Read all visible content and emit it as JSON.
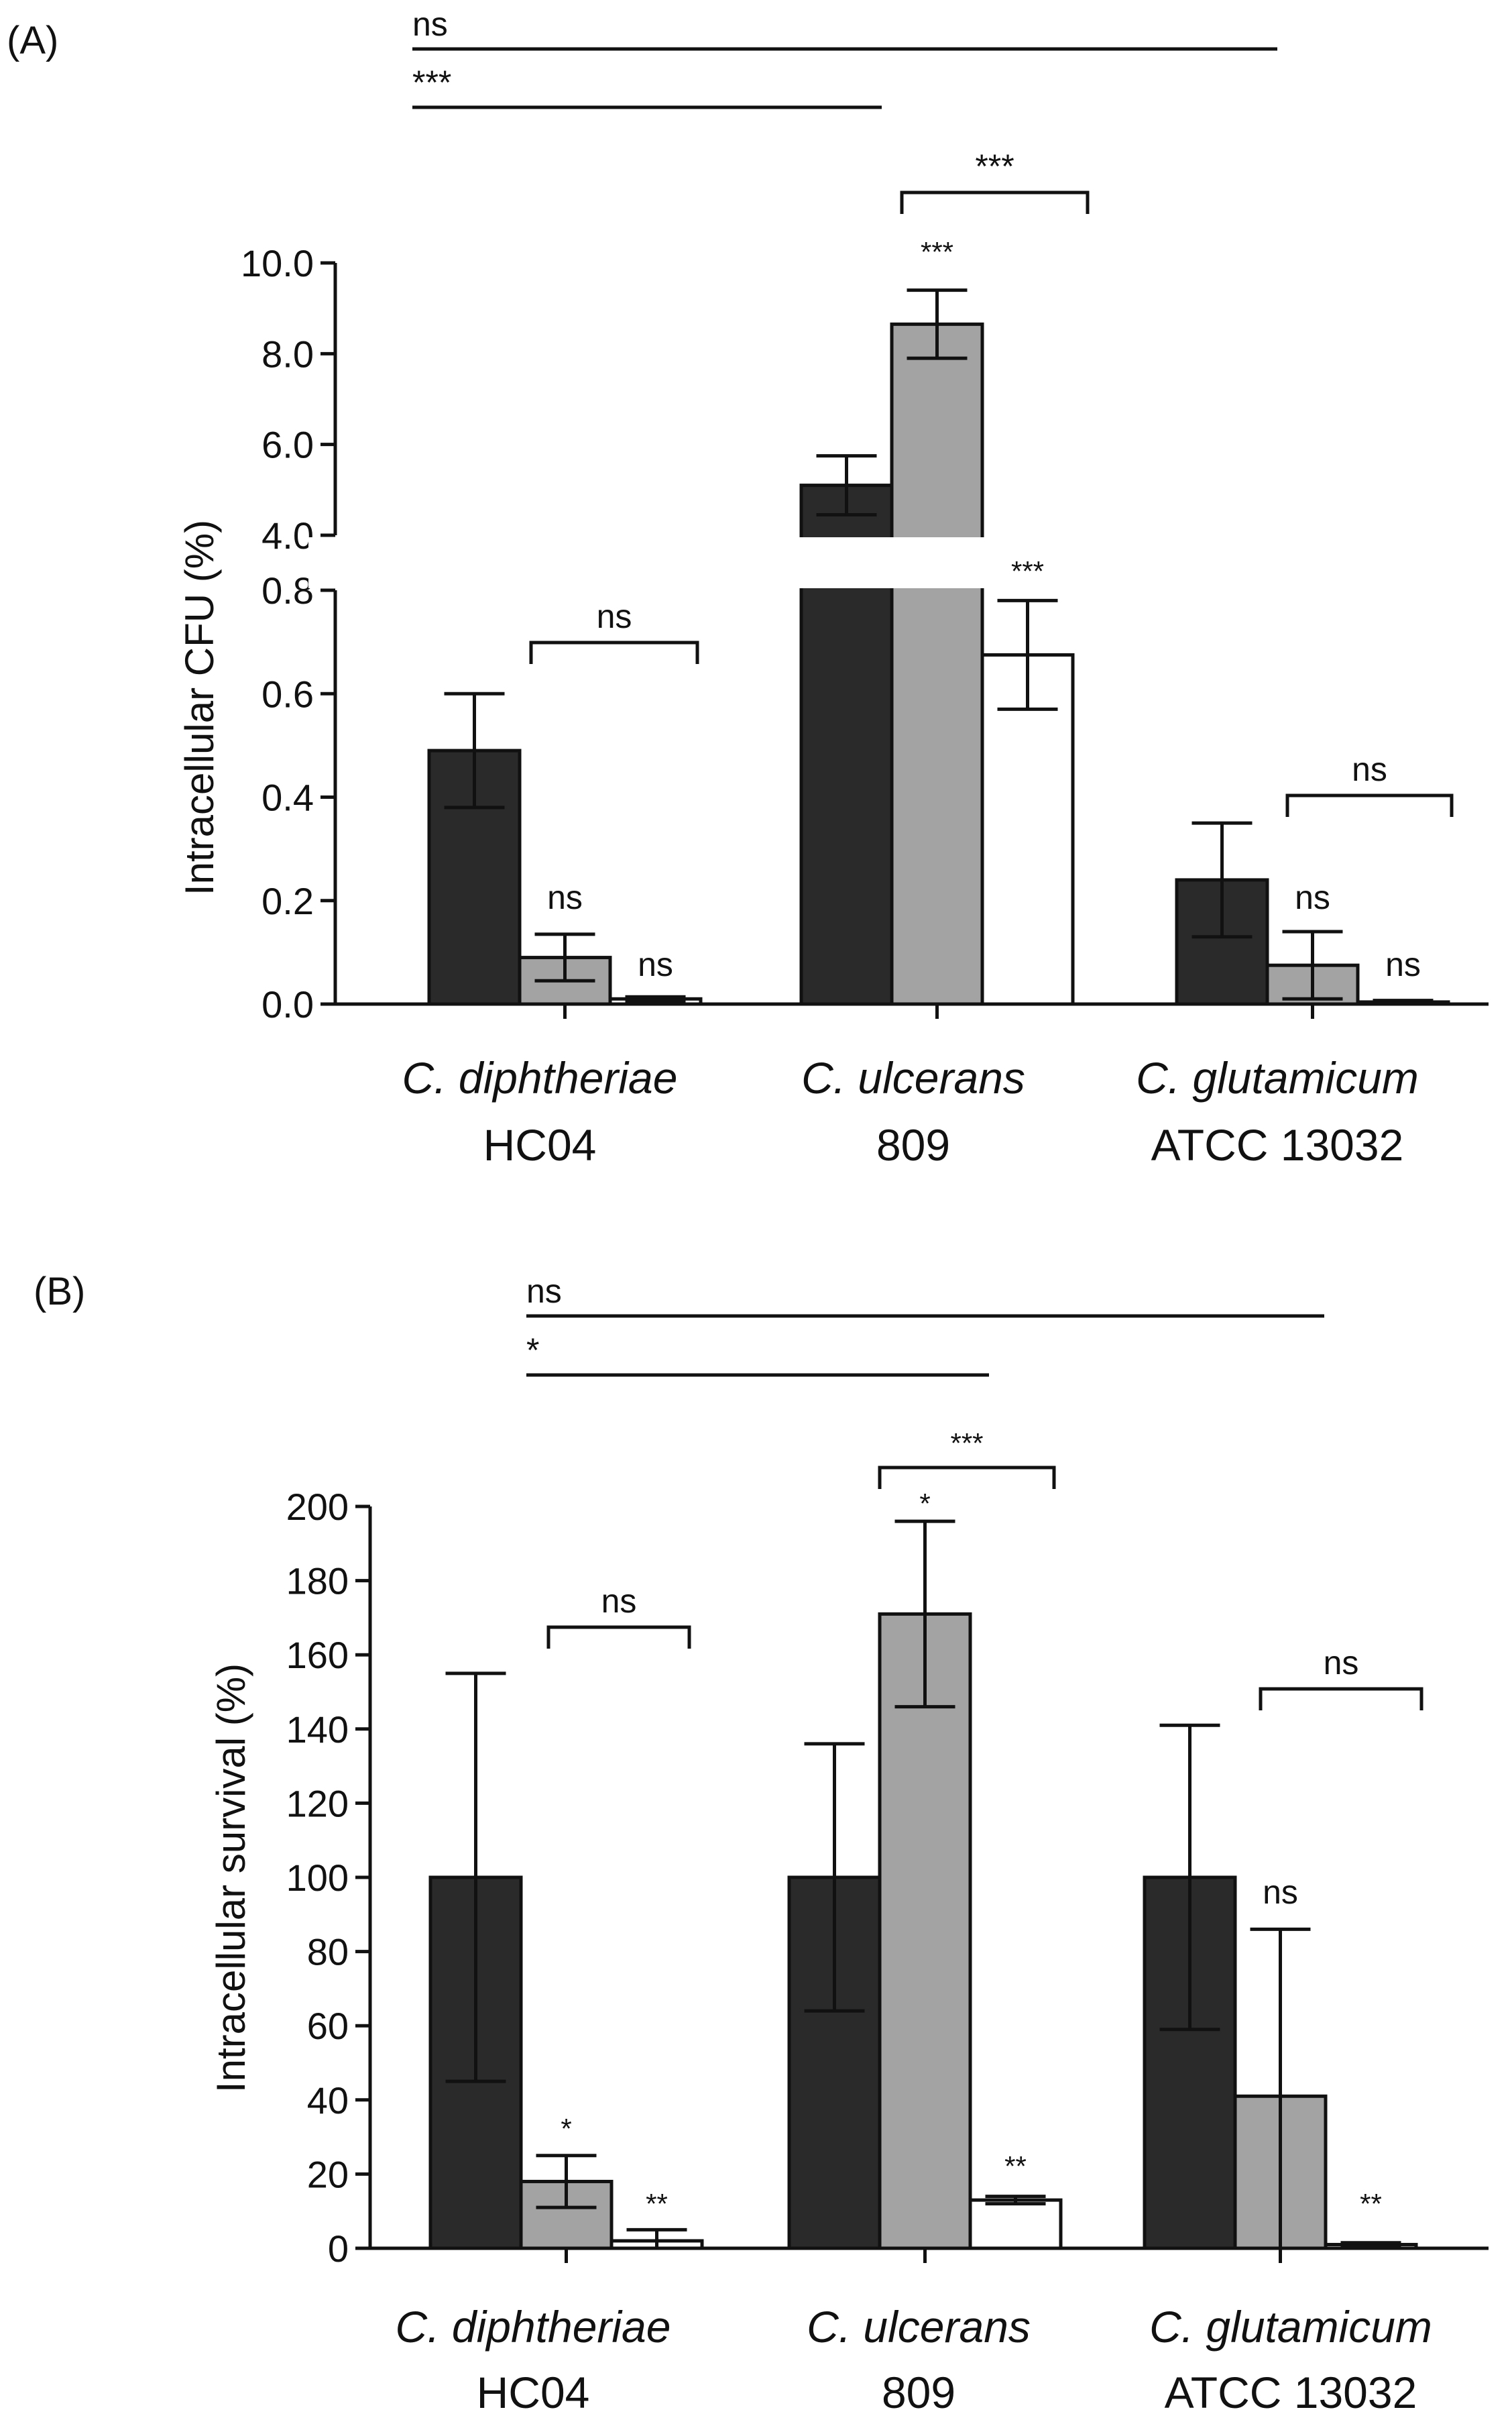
{
  "chart_data": [
    {
      "panel_label": "(A)",
      "type": "bar",
      "ylabel": "Intracellular CFU (%)",
      "axis_break": true,
      "lower_range": [
        0,
        0.8
      ],
      "upper_range": [
        4.0,
        10.0
      ],
      "lower_tick_labels": [
        "0.0",
        "0.2",
        "0.4",
        "0.6",
        "0.8"
      ],
      "upper_tick_labels": [
        "4.0",
        "6.0",
        "8.0",
        "10.0"
      ],
      "categories": [
        {
          "species": "C. diphtheriae",
          "strain": "HC04"
        },
        {
          "species": "C. ulcerans",
          "strain": "809"
        },
        {
          "species": "C. glutamicum",
          "strain": "ATCC 13032"
        }
      ],
      "series": [
        {
          "fill": "#2a2a2a",
          "values": [
            0.49,
            5.1,
            0.24
          ],
          "errors": [
            0.11,
            0.65,
            0.11
          ]
        },
        {
          "fill": "#a3a3a3",
          "values": [
            0.09,
            8.65,
            0.075
          ],
          "errors": [
            0.045,
            0.75,
            0.065
          ]
        },
        {
          "fill": "#ffffff",
          "values": [
            0.01,
            0.675,
            0.004
          ],
          "errors": [
            0.004,
            0.105,
            0.003
          ]
        }
      ],
      "bar_marks": [
        [
          "",
          "ns",
          "ns"
        ],
        [
          "",
          "***",
          "***"
        ],
        [
          "",
          "ns",
          "ns"
        ]
      ],
      "within_group_brackets": [
        "ns",
        "***",
        "ns"
      ],
      "between_group_lines": [
        "ns",
        "***"
      ]
    },
    {
      "panel_label": "(B)",
      "type": "bar",
      "ylabel": "Intracellular survival (%)",
      "ylim": [
        0,
        200
      ],
      "tick_labels": [
        "0",
        "20",
        "40",
        "60",
        "80",
        "100",
        "120",
        "140",
        "160",
        "180",
        "200"
      ],
      "categories": [
        {
          "species": "C. diphtheriae",
          "strain": "HC04"
        },
        {
          "species": "C. ulcerans",
          "strain": "809"
        },
        {
          "species": "C. glutamicum",
          "strain": "ATCC 13032"
        }
      ],
      "series": [
        {
          "fill": "#2a2a2a",
          "values": [
            100,
            100,
            100
          ],
          "errors": [
            55,
            36,
            41
          ]
        },
        {
          "fill": "#a3a3a3",
          "values": [
            18,
            171,
            41
          ],
          "errors": [
            7,
            25,
            45
          ]
        },
        {
          "fill": "#ffffff",
          "values": [
            2,
            13,
            1
          ],
          "errors": [
            3,
            1,
            0.5
          ]
        }
      ],
      "bar_marks": [
        [
          "",
          "*",
          "**"
        ],
        [
          "",
          "*",
          "**"
        ],
        [
          "",
          "ns",
          "**"
        ]
      ],
      "within_group_brackets": [
        "ns",
        "***",
        "ns"
      ],
      "between_group_lines": [
        "ns",
        "*"
      ]
    }
  ]
}
